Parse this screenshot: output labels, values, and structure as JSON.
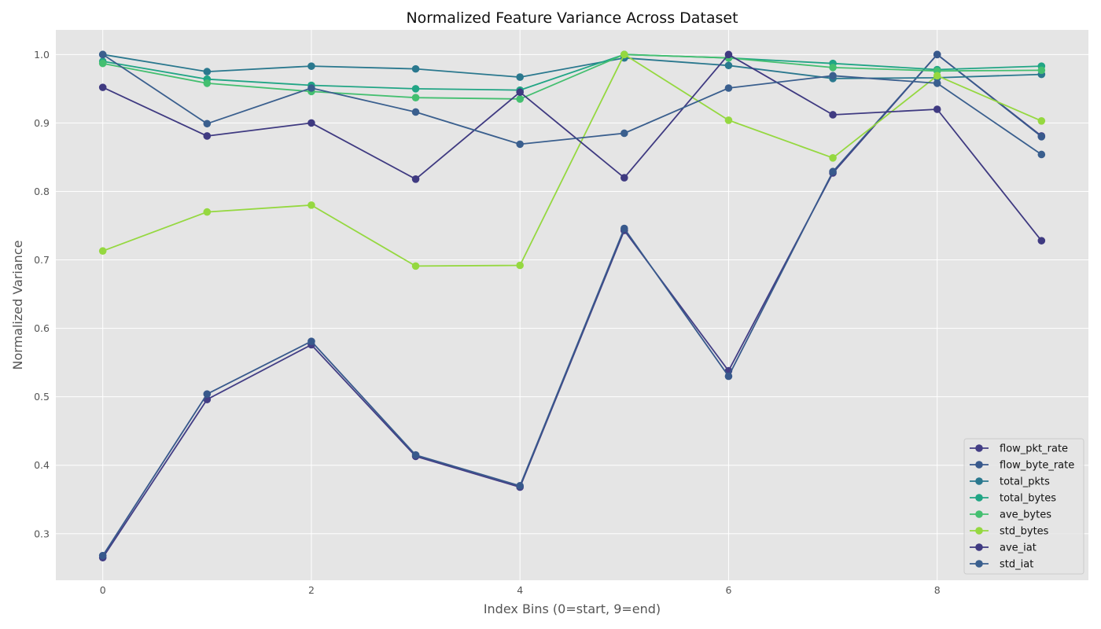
{
  "chart_data": {
    "type": "line",
    "title": "Normalized Feature Variance Across Dataset",
    "xlabel": "Index Bins (0=start, 9=end)",
    "ylabel": "Normalized Variance",
    "x": [
      0,
      1,
      2,
      3,
      4,
      5,
      6,
      7,
      8,
      9
    ],
    "xlim": [
      -0.45,
      9.45
    ],
    "ylim": [
      0.232,
      1.036
    ],
    "xticks": [
      0,
      2,
      4,
      6,
      8
    ],
    "yticks": [
      0.3,
      0.4,
      0.5,
      0.6,
      0.7,
      0.8,
      0.9,
      1.0
    ],
    "grid": true,
    "legend_position": "lower-right",
    "series": [
      {
        "name": "flow_pkt_rate",
        "color": "#433e85",
        "values": [
          0.265,
          0.496,
          0.576,
          0.413,
          0.368,
          0.743,
          0.538,
          0.827,
          1.0,
          0.881
        ]
      },
      {
        "name": "flow_byte_rate",
        "color": "#38598c",
        "values": [
          0.268,
          0.504,
          0.581,
          0.415,
          0.37,
          0.746,
          0.53,
          0.829,
          1.0,
          0.88
        ]
      },
      {
        "name": "total_pkts",
        "color": "#2a788e",
        "values": [
          1.0,
          0.975,
          0.983,
          0.979,
          0.967,
          0.995,
          0.984,
          0.965,
          0.966,
          0.971
        ]
      },
      {
        "name": "total_bytes",
        "color": "#21a585",
        "values": [
          0.99,
          0.964,
          0.955,
          0.95,
          0.948,
          1.0,
          0.995,
          0.987,
          0.978,
          0.983
        ]
      },
      {
        "name": "ave_bytes",
        "color": "#44bf70",
        "values": [
          0.987,
          0.958,
          0.946,
          0.937,
          0.935,
          1.0,
          0.995,
          0.981,
          0.976,
          0.977
        ]
      },
      {
        "name": "std_bytes",
        "color": "#95d840",
        "values": [
          0.713,
          0.77,
          0.78,
          0.691,
          0.692,
          1.0,
          0.904,
          0.849,
          0.969,
          0.903
        ]
      },
      {
        "name": "ave_iat",
        "color": "#3f3a81",
        "values": [
          0.952,
          0.881,
          0.9,
          0.818,
          0.945,
          0.82,
          1.0,
          0.912,
          0.92,
          0.728
        ]
      },
      {
        "name": "std_iat",
        "color": "#3a5f8e",
        "values": [
          1.0,
          0.899,
          0.951,
          0.916,
          0.869,
          0.885,
          0.951,
          0.969,
          0.958,
          0.854
        ]
      }
    ]
  }
}
